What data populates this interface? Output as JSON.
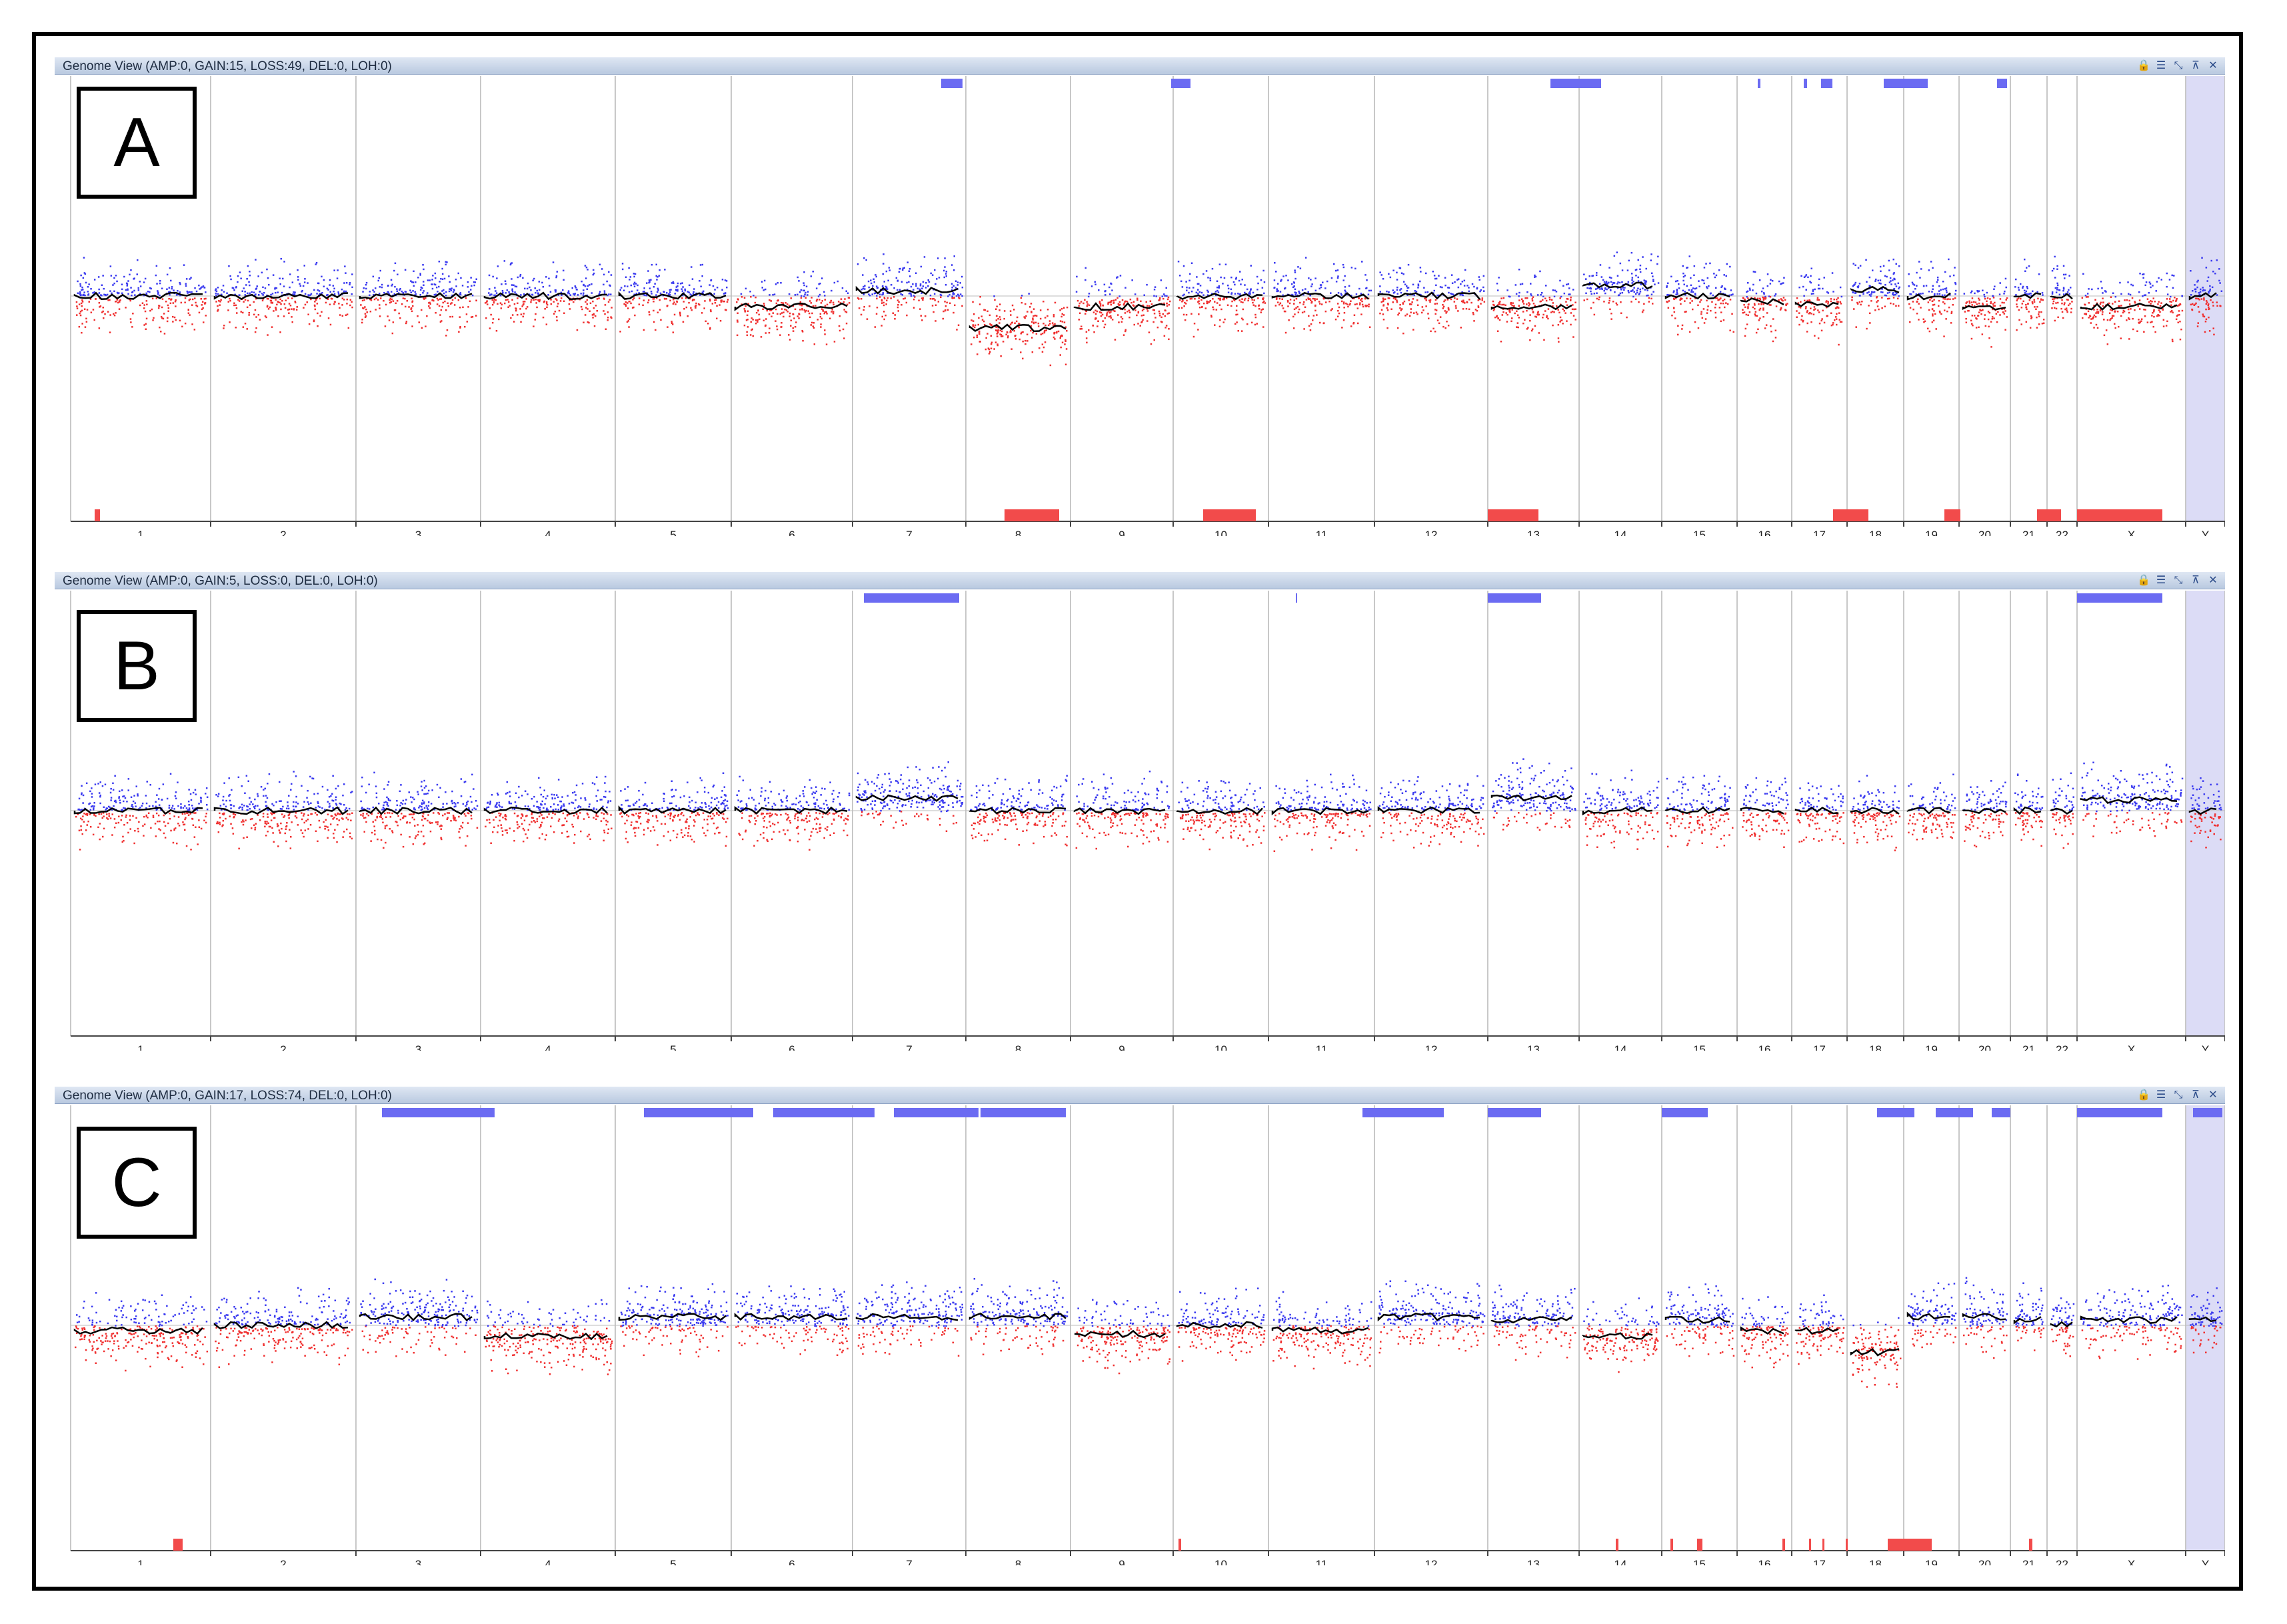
{
  "panels": [
    {
      "letter": "A",
      "title": "Genome View (AMP:0, GAIN:15, LOSS:49, DEL:0, LOH:0)",
      "segments": [
        0.0,
        0.0,
        0.0,
        0.0,
        0.0,
        -0.1,
        0.05,
        -0.3,
        -0.1,
        0.0,
        0.0,
        0.0,
        -0.1,
        0.1,
        0.0,
        -0.05,
        -0.08,
        0.06,
        0.0,
        -0.1,
        0.0,
        0.0,
        -0.1,
        0.0
      ]
    },
    {
      "letter": "B",
      "title": "Genome View (AMP:0, GAIN:5, LOSS:0, DEL:0, LOH:0)",
      "segments": [
        0.0,
        0.0,
        0.0,
        0.0,
        0.0,
        0.0,
        0.12,
        0.0,
        0.0,
        0.0,
        0.0,
        0.0,
        0.12,
        0.0,
        0.0,
        0.0,
        0.0,
        0.0,
        0.0,
        0.0,
        0.0,
        0.0,
        0.1,
        0.0
      ]
    },
    {
      "letter": "C",
      "title": "Genome View (AMP:0, GAIN:17, LOSS:74, DEL:0, LOH:0)",
      "segments": [
        -0.05,
        0.0,
        0.08,
        -0.1,
        0.08,
        0.08,
        0.08,
        0.08,
        -0.08,
        0.0,
        -0.05,
        0.08,
        0.05,
        -0.1,
        0.05,
        -0.05,
        -0.05,
        -0.25,
        0.08,
        0.08,
        0.05,
        0.0,
        0.05,
        0.05
      ]
    }
  ],
  "chromosomes": [
    "1",
    "2",
    "3",
    "4",
    "5",
    "6",
    "7",
    "8",
    "9",
    "10",
    "11",
    "12",
    "13",
    "14",
    "15",
    "16",
    "17",
    "18",
    "19",
    "20",
    "21",
    "22",
    "X",
    "Y"
  ],
  "icons": [
    "lock-icon",
    "layout-icon",
    "minimize-icon",
    "pin-icon",
    "close-icon"
  ],
  "colors": {
    "gain": "#6b6bf2",
    "loss": "#f24b4b",
    "gain_points": "#3a3af0",
    "loss_points": "#f03030",
    "trend": "#000000",
    "y_highlight": "#dcdcf6"
  }
}
